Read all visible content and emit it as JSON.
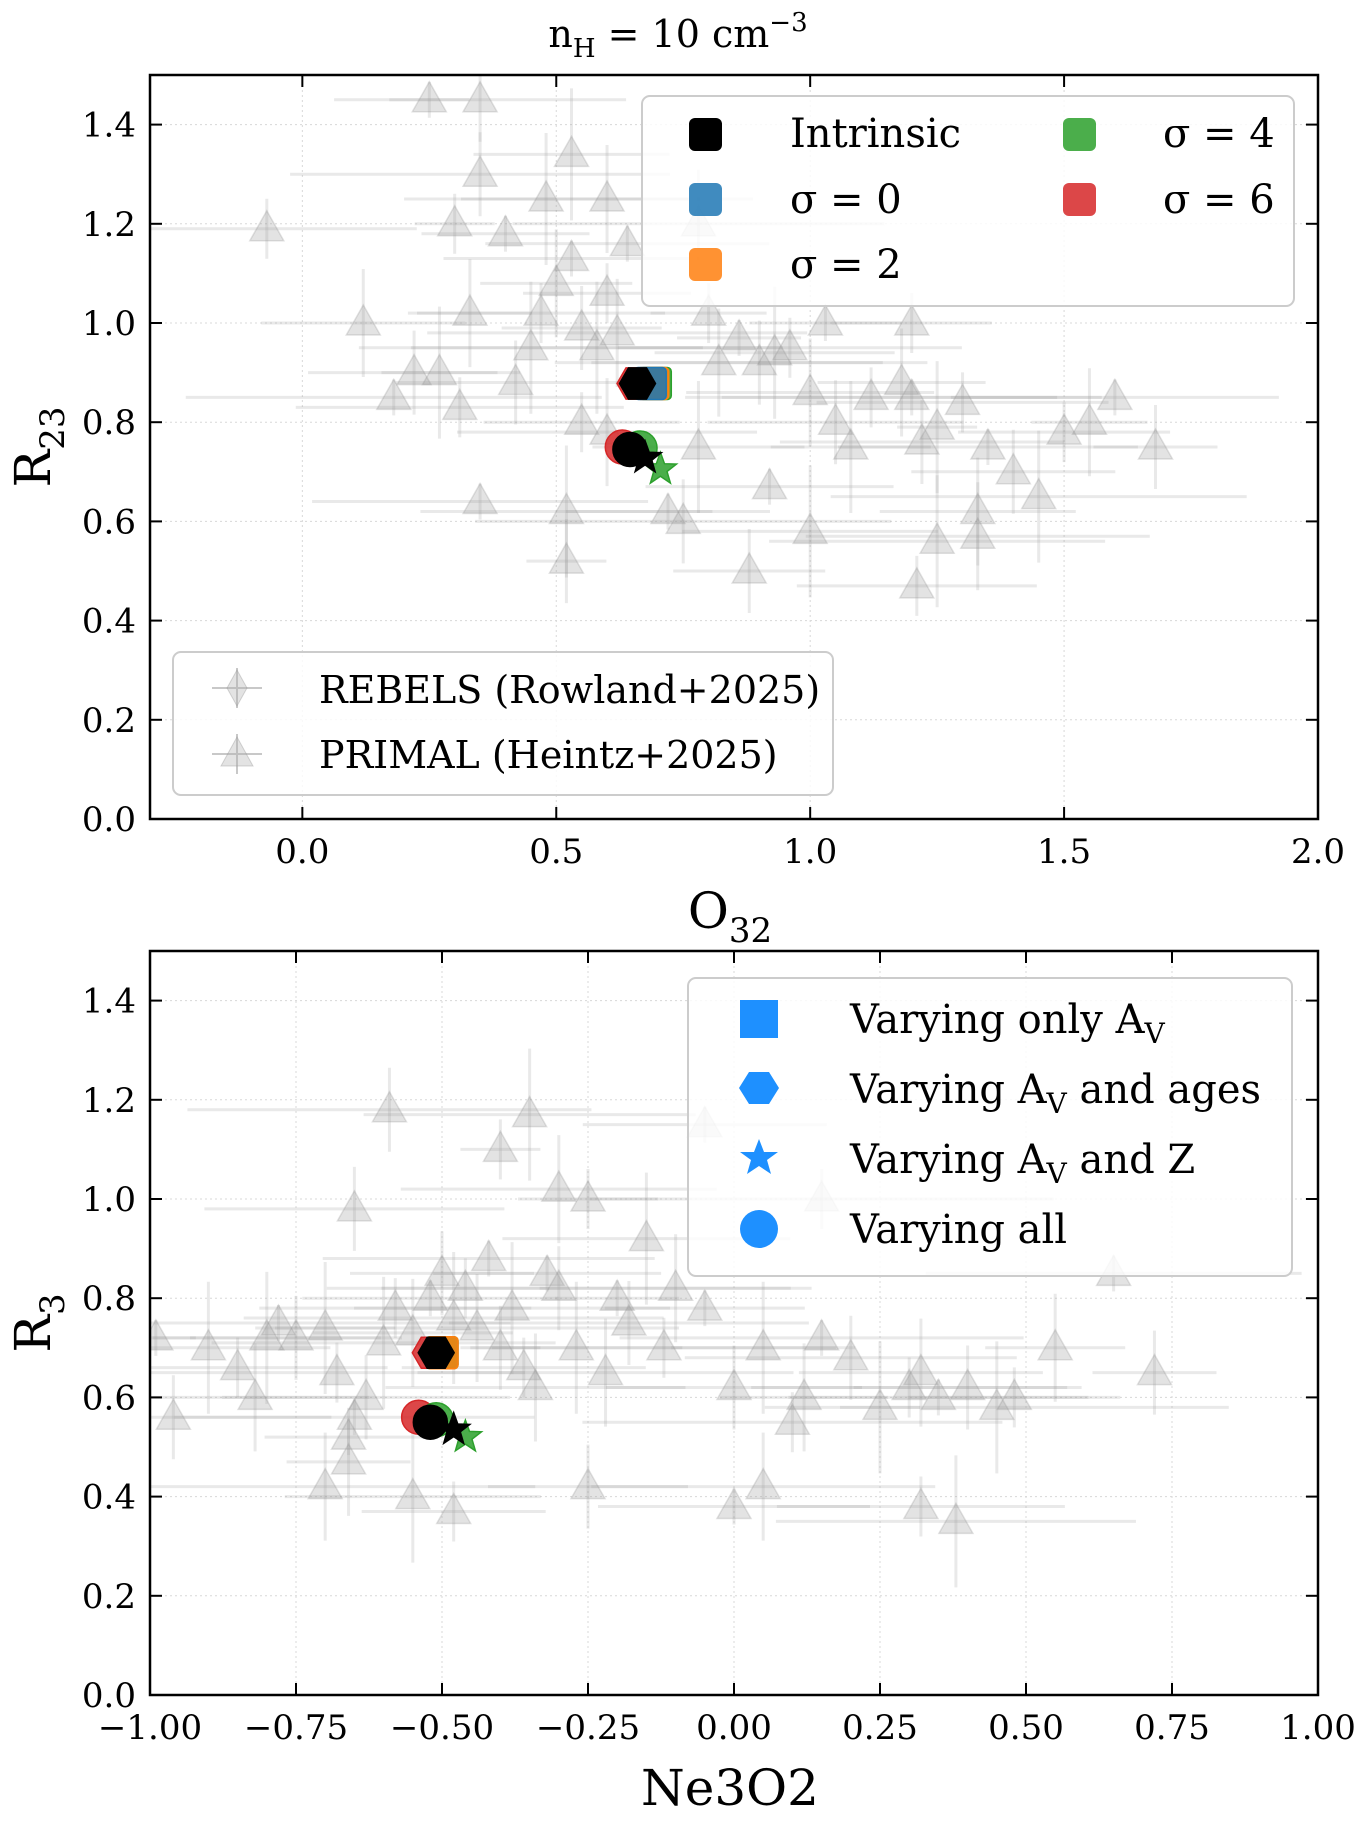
{
  "figure_title": "n",
  "figure_title_sub": "H",
  "figure_title_rest": " = 10 cm",
  "figure_title_sup": "−3",
  "colors": {
    "intrinsic": "#000000",
    "sigma0": "#1f77b4",
    "sigma2": "#ff7f0e",
    "sigma4": "#2ca02c",
    "sigma6": "#d62728",
    "observed": "#9a9a9a",
    "legend_marker_blue": "#1e90ff"
  },
  "chart_data": [
    {
      "type": "scatter",
      "title": "n_H = 10 cm^-3",
      "xlabel_main": "O",
      "xlabel_sub": "32",
      "ylabel_main": "R",
      "ylabel_sub": "23",
      "xlim": [
        -0.3,
        2.0
      ],
      "ylim": [
        0.0,
        1.5
      ],
      "xticks": [
        0.0,
        0.5,
        1.0,
        1.5,
        2.0
      ],
      "xtick_labels": [
        "0.0",
        "0.5",
        "1.0",
        "1.5",
        "2.0"
      ],
      "yticks": [
        0.0,
        0.2,
        0.4,
        0.6,
        0.8,
        1.0,
        1.2,
        1.4
      ],
      "ytick_labels": [
        "0.0",
        "0.2",
        "0.4",
        "0.6",
        "0.8",
        "1.0",
        "1.2",
        "1.4"
      ],
      "grid": true,
      "legend_sigma": {
        "position": "top-right",
        "entries": [
          {
            "label": "Intrinsic",
            "color_key": "intrinsic"
          },
          {
            "label": "σ = 0",
            "color_key": "sigma0"
          },
          {
            "label": "σ = 2",
            "color_key": "sigma2"
          },
          {
            "label": "σ = 4",
            "color_key": "sigma4"
          },
          {
            "label": "σ = 6",
            "color_key": "sigma6"
          }
        ]
      },
      "legend_obs": {
        "position": "bottom-left",
        "entries": [
          {
            "label": "REBELS (Rowland+2025)",
            "marker": "diamond"
          },
          {
            "label": "PRIMAL (Heintz+2025)",
            "marker": "triangle"
          }
        ]
      },
      "model_points": [
        {
          "marker": "hexagon",
          "series": "sigma6",
          "x": 0.655,
          "y": 0.878
        },
        {
          "marker": "square",
          "series": "sigma4",
          "x": 0.695,
          "y": 0.878
        },
        {
          "marker": "square",
          "series": "sigma2",
          "x": 0.69,
          "y": 0.878
        },
        {
          "marker": "square",
          "series": "sigma0",
          "x": 0.685,
          "y": 0.878
        },
        {
          "marker": "hexagon",
          "series": "intrinsic",
          "x": 0.66,
          "y": 0.878
        },
        {
          "marker": "circle",
          "series": "sigma6",
          "x": 0.63,
          "y": 0.75
        },
        {
          "marker": "circle",
          "series": "sigma4",
          "x": 0.665,
          "y": 0.748
        },
        {
          "marker": "circle",
          "series": "intrinsic",
          "x": 0.645,
          "y": 0.745
        },
        {
          "marker": "star",
          "series": "sigma4",
          "x": 0.705,
          "y": 0.705
        },
        {
          "marker": "star",
          "series": "intrinsic",
          "x": 0.675,
          "y": 0.728
        }
      ],
      "observations_primal": [
        {
          "x": 0.25,
          "y": 1.45
        },
        {
          "x": 0.35,
          "y": 1.45
        },
        {
          "x": 0.53,
          "y": 1.34
        },
        {
          "x": -0.07,
          "y": 1.19
        },
        {
          "x": 0.12,
          "y": 1.0
        },
        {
          "x": 0.18,
          "y": 0.85
        },
        {
          "x": 0.22,
          "y": 0.9
        },
        {
          "x": 0.27,
          "y": 0.9
        },
        {
          "x": 0.31,
          "y": 0.83
        },
        {
          "x": 0.33,
          "y": 1.02
        },
        {
          "x": 0.35,
          "y": 0.64
        },
        {
          "x": 0.42,
          "y": 0.88
        },
        {
          "x": 0.45,
          "y": 0.95
        },
        {
          "x": 0.47,
          "y": 1.02
        },
        {
          "x": 0.5,
          "y": 1.08
        },
        {
          "x": 0.53,
          "y": 1.13
        },
        {
          "x": 0.55,
          "y": 0.99
        },
        {
          "x": 0.58,
          "y": 0.95
        },
        {
          "x": 0.6,
          "y": 1.06
        },
        {
          "x": 0.62,
          "y": 0.98
        },
        {
          "x": 0.64,
          "y": 1.16
        },
        {
          "x": 0.52,
          "y": 0.52
        },
        {
          "x": 0.52,
          "y": 0.62
        },
        {
          "x": 0.55,
          "y": 0.8
        },
        {
          "x": 0.6,
          "y": 0.78
        },
        {
          "x": 0.72,
          "y": 0.62
        },
        {
          "x": 0.75,
          "y": 0.6
        },
        {
          "x": 0.78,
          "y": 0.75
        },
        {
          "x": 0.8,
          "y": 1.02
        },
        {
          "x": 0.82,
          "y": 0.92
        },
        {
          "x": 0.86,
          "y": 0.97
        },
        {
          "x": 0.9,
          "y": 0.92
        },
        {
          "x": 0.93,
          "y": 0.94
        },
        {
          "x": 0.96,
          "y": 0.95
        },
        {
          "x": 1.0,
          "y": 0.86
        },
        {
          "x": 1.03,
          "y": 1.0
        },
        {
          "x": 1.05,
          "y": 0.8
        },
        {
          "x": 1.08,
          "y": 0.75
        },
        {
          "x": 1.12,
          "y": 0.85
        },
        {
          "x": 1.18,
          "y": 0.88
        },
        {
          "x": 1.2,
          "y": 0.85
        },
        {
          "x": 1.22,
          "y": 0.76
        },
        {
          "x": 1.25,
          "y": 0.79
        },
        {
          "x": 1.3,
          "y": 0.84
        },
        {
          "x": 1.33,
          "y": 0.62
        },
        {
          "x": 1.35,
          "y": 0.75
        },
        {
          "x": 1.4,
          "y": 0.7
        },
        {
          "x": 1.45,
          "y": 0.65
        },
        {
          "x": 1.5,
          "y": 0.78
        },
        {
          "x": 1.55,
          "y": 0.8
        },
        {
          "x": 1.6,
          "y": 0.85
        },
        {
          "x": 1.68,
          "y": 0.75
        },
        {
          "x": 1.25,
          "y": 0.56
        },
        {
          "x": 1.21,
          "y": 0.47
        },
        {
          "x": 1.33,
          "y": 0.57
        },
        {
          "x": 0.92,
          "y": 0.67
        },
        {
          "x": 0.88,
          "y": 0.5
        },
        {
          "x": 1.0,
          "y": 0.58
        },
        {
          "x": 1.2,
          "y": 1.0
        },
        {
          "x": 0.78,
          "y": 1.2
        },
        {
          "x": 0.4,
          "y": 1.18
        },
        {
          "x": 0.35,
          "y": 1.3
        },
        {
          "x": 0.48,
          "y": 1.25
        },
        {
          "x": 0.3,
          "y": 1.2
        },
        {
          "x": 0.6,
          "y": 1.25
        }
      ]
    },
    {
      "type": "scatter",
      "title": "",
      "xlabel_main": "Ne3O2",
      "xlabel_sub": "",
      "ylabel_main": "R",
      "ylabel_sub": "3",
      "xlim": [
        -1.0,
        1.0
      ],
      "ylim": [
        0.0,
        1.5
      ],
      "xticks": [
        -1.0,
        -0.75,
        -0.5,
        -0.25,
        0.0,
        0.25,
        0.5,
        0.75,
        1.0
      ],
      "xtick_labels": [
        "−1.00",
        "−0.75",
        "−0.50",
        "−0.25",
        "0.00",
        "0.25",
        "0.50",
        "0.75",
        "1.00"
      ],
      "yticks": [
        0.0,
        0.2,
        0.4,
        0.6,
        0.8,
        1.0,
        1.2,
        1.4
      ],
      "ytick_labels": [
        "0.0",
        "0.2",
        "0.4",
        "0.6",
        "0.8",
        "1.0",
        "1.2",
        "1.4"
      ],
      "grid": true,
      "legend_marker": {
        "position": "top-right",
        "entries": [
          {
            "marker": "square",
            "label_pre": "Varying only A",
            "label_sub": "V",
            "label_post": ""
          },
          {
            "marker": "hexagon",
            "label_pre": "Varying A",
            "label_sub": "V",
            "label_post": " and ages"
          },
          {
            "marker": "star",
            "label_pre": "Varying A",
            "label_sub": "V",
            "label_post": " and Z"
          },
          {
            "marker": "circle",
            "label_pre": "Varying all",
            "label_sub": "",
            "label_post": ""
          }
        ]
      },
      "model_points": [
        {
          "marker": "hexagon",
          "series": "sigma6",
          "x": -0.52,
          "y": 0.69
        },
        {
          "marker": "square",
          "series": "sigma4",
          "x": -0.5,
          "y": 0.69
        },
        {
          "marker": "square",
          "series": "sigma2",
          "x": -0.5,
          "y": 0.69
        },
        {
          "marker": "hexagon",
          "series": "intrinsic",
          "x": -0.51,
          "y": 0.69
        },
        {
          "marker": "circle",
          "series": "sigma6",
          "x": -0.54,
          "y": 0.56
        },
        {
          "marker": "circle",
          "series": "sigma4",
          "x": -0.51,
          "y": 0.555
        },
        {
          "marker": "circle",
          "series": "intrinsic",
          "x": -0.52,
          "y": 0.55
        },
        {
          "marker": "star",
          "series": "sigma4",
          "x": -0.46,
          "y": 0.52
        },
        {
          "marker": "star",
          "series": "intrinsic",
          "x": -0.48,
          "y": 0.535
        }
      ],
      "observations_primal": [
        {
          "x": -0.99,
          "y": 0.72
        },
        {
          "x": -0.96,
          "y": 0.56
        },
        {
          "x": -0.9,
          "y": 0.7
        },
        {
          "x": -0.85,
          "y": 0.66
        },
        {
          "x": -0.82,
          "y": 0.6
        },
        {
          "x": -0.78,
          "y": 0.75
        },
        {
          "x": -0.75,
          "y": 0.72
        },
        {
          "x": -0.7,
          "y": 0.74
        },
        {
          "x": -0.68,
          "y": 0.65
        },
        {
          "x": -0.66,
          "y": 0.47
        },
        {
          "x": -0.65,
          "y": 0.56
        },
        {
          "x": -0.63,
          "y": 0.6
        },
        {
          "x": -0.6,
          "y": 0.71
        },
        {
          "x": -0.58,
          "y": 0.78
        },
        {
          "x": -0.55,
          "y": 0.73
        },
        {
          "x": -0.52,
          "y": 0.8
        },
        {
          "x": -0.5,
          "y": 0.85
        },
        {
          "x": -0.48,
          "y": 0.76
        },
        {
          "x": -0.46,
          "y": 0.82
        },
        {
          "x": -0.44,
          "y": 0.74
        },
        {
          "x": -0.42,
          "y": 0.88
        },
        {
          "x": -0.4,
          "y": 0.7
        },
        {
          "x": -0.38,
          "y": 0.78
        },
        {
          "x": -0.36,
          "y": 0.66
        },
        {
          "x": -0.34,
          "y": 0.62
        },
        {
          "x": -0.32,
          "y": 0.85
        },
        {
          "x": -0.3,
          "y": 0.82
        },
        {
          "x": -0.27,
          "y": 0.7
        },
        {
          "x": -0.25,
          "y": 1.0
        },
        {
          "x": -0.22,
          "y": 0.65
        },
        {
          "x": -0.2,
          "y": 0.8
        },
        {
          "x": -0.18,
          "y": 0.75
        },
        {
          "x": -0.15,
          "y": 0.92
        },
        {
          "x": -0.12,
          "y": 0.7
        },
        {
          "x": -0.1,
          "y": 0.82
        },
        {
          "x": -0.05,
          "y": 0.78
        },
        {
          "x": 0.0,
          "y": 0.62
        },
        {
          "x": 0.05,
          "y": 0.7
        },
        {
          "x": 0.1,
          "y": 0.55
        },
        {
          "x": 0.12,
          "y": 0.6
        },
        {
          "x": 0.15,
          "y": 0.72
        },
        {
          "x": 0.2,
          "y": 0.68
        },
        {
          "x": 0.25,
          "y": 0.58
        },
        {
          "x": 0.3,
          "y": 0.62
        },
        {
          "x": 0.32,
          "y": 0.65
        },
        {
          "x": 0.35,
          "y": 0.6
        },
        {
          "x": 0.4,
          "y": 0.62
        },
        {
          "x": 0.45,
          "y": 0.58
        },
        {
          "x": 0.48,
          "y": 0.6
        },
        {
          "x": 0.55,
          "y": 0.7
        },
        {
          "x": 0.65,
          "y": 0.85
        },
        {
          "x": 0.72,
          "y": 0.65
        },
        {
          "x": 0.38,
          "y": 0.35
        },
        {
          "x": 0.32,
          "y": 0.38
        },
        {
          "x": 0.05,
          "y": 0.42
        },
        {
          "x": 0.0,
          "y": 0.38
        },
        {
          "x": -0.25,
          "y": 0.42
        },
        {
          "x": -0.55,
          "y": 0.4
        },
        {
          "x": -0.48,
          "y": 0.37
        },
        {
          "x": -0.7,
          "y": 0.42
        },
        {
          "x": -0.66,
          "y": 0.52
        },
        {
          "x": -0.59,
          "y": 1.18
        },
        {
          "x": -0.35,
          "y": 1.17
        },
        {
          "x": -0.4,
          "y": 1.1
        },
        {
          "x": -0.3,
          "y": 1.02
        },
        {
          "x": -0.05,
          "y": 1.15
        },
        {
          "x": -0.65,
          "y": 0.98
        },
        {
          "x": -0.8,
          "y": 0.72
        },
        {
          "x": 0.15,
          "y": 1.0
        }
      ]
    }
  ]
}
